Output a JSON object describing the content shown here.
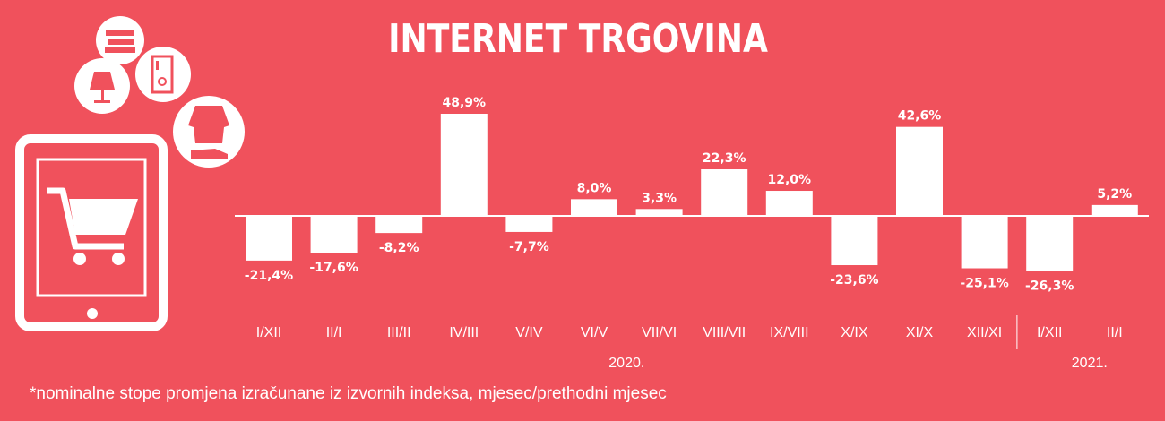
{
  "title": "INTERNET TRGOVINA",
  "footnote": "*nominalne stope promjena izračunane iz izvornih indeksa, mjesec/prethodni mjesec",
  "colors": {
    "background": "#f0515c",
    "foreground": "#ffffff"
  },
  "icons": [
    "shopping-cart-tablet-icon",
    "books-icon",
    "lamp-icon",
    "fridge-icon",
    "clothing-shoe-icon"
  ],
  "chart_data": {
    "type": "bar",
    "title": "INTERNET TRGOVINA",
    "categories": [
      "I/XII",
      "II/I",
      "III/II",
      "IV/III",
      "V/IV",
      "VI/V",
      "VII/VI",
      "VIII/VII",
      "IX/VIII",
      "X/IX",
      "XI/X",
      "XII/XI",
      "I/XII",
      "II/I"
    ],
    "values": [
      -21.4,
      -17.6,
      -8.2,
      48.9,
      -7.7,
      8.0,
      3.3,
      22.3,
      12.0,
      -23.6,
      42.6,
      -25.1,
      -26.3,
      5.2
    ],
    "labels": [
      "-21,4%",
      "-17,6%",
      "-8,2%",
      "48,9%",
      "-7,7%",
      "8,0%",
      "3,3%",
      "22,3%",
      "12,0%",
      "-23,6%",
      "42,6%",
      "-25,1%",
      "-26,3%",
      "5,2%"
    ],
    "groups": [
      {
        "label": "2020.",
        "from": 0,
        "to": 11
      },
      {
        "label": "2021.",
        "from": 12,
        "to": 13
      }
    ],
    "xlabel": "",
    "ylabel": "",
    "grid": false
  }
}
